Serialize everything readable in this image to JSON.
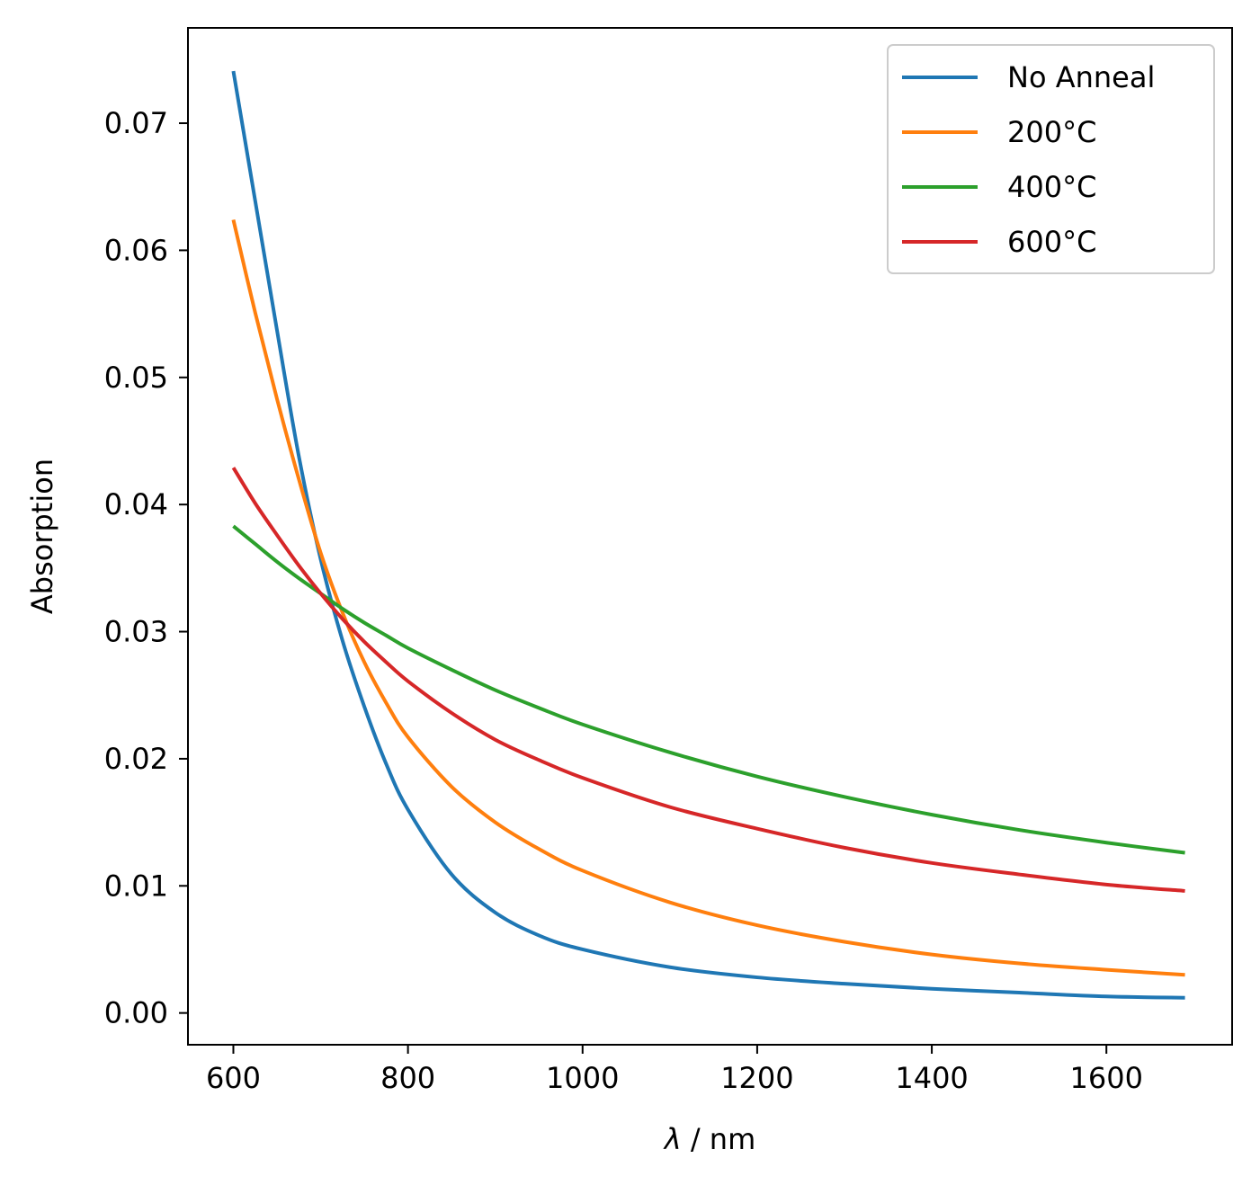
{
  "chart_data": {
    "type": "line",
    "title": "",
    "xlabel": {
      "symbol": "λ",
      "rest": " / nm"
    },
    "ylabel": "Absorption",
    "xlim": [
      548,
      1744
    ],
    "ylim": [
      -0.0025,
      0.0775
    ],
    "xticks": [
      600,
      800,
      1000,
      1200,
      1400,
      1600
    ],
    "xtick_labels": [
      "600",
      "800",
      "1000",
      "1200",
      "1400",
      "1600"
    ],
    "yticks": [
      0.0,
      0.01,
      0.02,
      0.03,
      0.04,
      0.05,
      0.06,
      0.07
    ],
    "ytick_labels": [
      "0.00",
      "0.01",
      "0.02",
      "0.03",
      "0.04",
      "0.05",
      "0.06",
      "0.07"
    ],
    "grid": false,
    "legend_position": "top-right",
    "series": [
      {
        "name": "No Anneal",
        "color": "#1f77b4",
        "x": [
          600,
          625,
          650,
          675,
          700,
          725,
          750,
          775,
          800,
          850,
          900,
          950,
          1000,
          1100,
          1200,
          1300,
          1400,
          1500,
          1600,
          1690
        ],
        "y": [
          0.0741,
          0.0639,
          0.0537,
          0.0438,
          0.0357,
          0.0293,
          0.0241,
          0.0196,
          0.016,
          0.0109,
          0.0079,
          0.0061,
          0.005,
          0.0036,
          0.0028,
          0.0023,
          0.0019,
          0.0016,
          0.0013,
          0.0012
        ]
      },
      {
        "name": "200°C",
        "color": "#ff7f0e",
        "x": [
          600,
          625,
          650,
          675,
          700,
          725,
          750,
          775,
          800,
          850,
          900,
          950,
          1000,
          1100,
          1200,
          1300,
          1400,
          1500,
          1600,
          1690
        ],
        "y": [
          0.0624,
          0.0551,
          0.0483,
          0.042,
          0.0362,
          0.0315,
          0.0276,
          0.0244,
          0.0217,
          0.0178,
          0.015,
          0.0129,
          0.0112,
          0.0087,
          0.0069,
          0.0056,
          0.0046,
          0.0039,
          0.0034,
          0.003
        ]
      },
      {
        "name": "400°C",
        "color": "#2ca02c",
        "x": [
          600,
          625,
          650,
          675,
          700,
          725,
          750,
          775,
          800,
          850,
          900,
          950,
          1000,
          1100,
          1200,
          1300,
          1400,
          1500,
          1600,
          1690
        ],
        "y": [
          0.0383,
          0.0369,
          0.0355,
          0.0342,
          0.033,
          0.0318,
          0.0307,
          0.0297,
          0.0287,
          0.027,
          0.0254,
          0.024,
          0.0227,
          0.0205,
          0.0186,
          0.017,
          0.0156,
          0.0144,
          0.0134,
          0.0126
        ]
      },
      {
        "name": "600°C",
        "color": "#d62728",
        "x": [
          600,
          625,
          650,
          675,
          700,
          725,
          750,
          775,
          800,
          850,
          900,
          950,
          1000,
          1100,
          1200,
          1300,
          1400,
          1500,
          1600,
          1690
        ],
        "y": [
          0.0429,
          0.0401,
          0.0376,
          0.0352,
          0.033,
          0.031,
          0.0292,
          0.0276,
          0.0261,
          0.0236,
          0.0215,
          0.0199,
          0.0185,
          0.0162,
          0.0145,
          0.013,
          0.0118,
          0.0109,
          0.0101,
          0.0096
        ]
      }
    ]
  }
}
